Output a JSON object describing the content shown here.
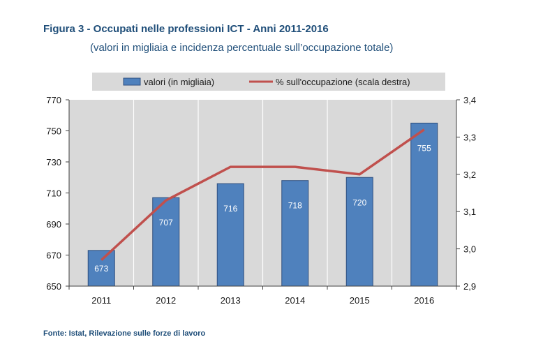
{
  "figure": {
    "title": "Figura 3 - Occupati nelle professioni ICT - Anni 2011-2016",
    "subtitle": "(valori in migliaia e incidenza percentuale sull’occupazione totale)",
    "source": "Fonte: Istat, Rilevazione sulle forze di lavoro"
  },
  "colors": {
    "bar": "#4f81bd",
    "bar_border": "#2f4f7f",
    "line": "#c0504d",
    "plot_bg": "#d9d9d9",
    "legend_bg": "#d9d9d9",
    "text": "#1f4e79"
  },
  "chart_data": {
    "type": "bar",
    "title": "Figura 3 - Occupati nelle professioni ICT - Anni 2011-2016",
    "subtitle": "(valori in migliaia e incidenza percentuale sull’occupazione totale)",
    "categories": [
      "2011",
      "2012",
      "2013",
      "2014",
      "2015",
      "2016"
    ],
    "series": [
      {
        "name": "valori (in migliaia)",
        "type": "bar",
        "axis": "left",
        "values": [
          673,
          707,
          716,
          718,
          720,
          755
        ],
        "labels": [
          "673",
          "707",
          "716",
          "718",
          "720",
          "755"
        ]
      },
      {
        "name": "% sull'occupazione (scala destra)",
        "type": "line",
        "axis": "right",
        "values": [
          2.97,
          3.13,
          3.22,
          3.22,
          3.2,
          3.32
        ]
      }
    ],
    "ylim": [
      650,
      770
    ],
    "yticks": [
      "770",
      "750",
      "730",
      "710",
      "690",
      "670",
      "650"
    ],
    "ytick_values": [
      770,
      750,
      730,
      710,
      690,
      670,
      650
    ],
    "y2lim": [
      2.9,
      3.4
    ],
    "y2ticks": [
      "3,4",
      "3,3",
      "3,2",
      "3,1",
      "3,0",
      "2,9"
    ],
    "y2tick_values": [
      3.4,
      3.3,
      3.2,
      3.1,
      3.0,
      2.9
    ],
    "grid": "vertical",
    "legend": "top"
  }
}
